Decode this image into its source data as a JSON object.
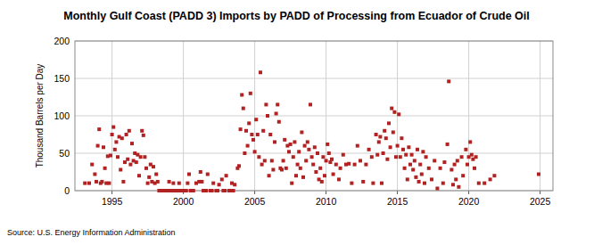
{
  "chart_data": {
    "type": "scatter",
    "title": "Monthly Gulf Coast (PADD 3) Imports by PADD of Processing from Ecuador of Crude Oil",
    "y_label": "Thousand Barrels per Day",
    "source": "Source: U.S. Energy Information Administration",
    "color": "#b22222",
    "marker": "square",
    "grid": true,
    "xlim": [
      1992.4,
      2025.9
    ],
    "xticks": [
      1995,
      2000,
      2005,
      2010,
      2015,
      2020,
      2025
    ],
    "ylim": [
      0,
      200
    ],
    "yticks": [
      0,
      50,
      100,
      150,
      200
    ],
    "x": [
      1993.1,
      1993.4,
      1993.6,
      1993.8,
      1993.9,
      1994.0,
      1994.1,
      1994.2,
      1994.3,
      1994.4,
      1994.5,
      1994.6,
      1994.7,
      1994.8,
      1994.9,
      1995.0,
      1995.1,
      1995.2,
      1995.3,
      1995.4,
      1995.5,
      1995.6,
      1995.7,
      1995.8,
      1995.9,
      1996.0,
      1996.1,
      1996.2,
      1996.3,
      1996.4,
      1996.5,
      1996.6,
      1996.7,
      1996.8,
      1996.9,
      1997.0,
      1997.1,
      1997.2,
      1997.3,
      1997.4,
      1997.5,
      1997.6,
      1997.7,
      1997.8,
      1997.9,
      1998.0,
      1998.1,
      1998.2,
      1998.3,
      1998.5,
      1998.7,
      1998.9,
      1999.0,
      1999.1,
      1999.3,
      1999.5,
      1999.7,
      1999.9,
      2000.0,
      2000.2,
      2000.3,
      2000.4,
      2000.5,
      2000.9,
      1998.4,
      1998.6,
      1998.8,
      1999.2,
      1999.4,
      1999.6,
      1999.8,
      2000.1,
      2000.6,
      2000.7,
      2001.1,
      2001.2,
      2001.3,
      2001.4,
      2001.5,
      2001.6,
      2001.7,
      2001.9,
      2002.0,
      2002.1,
      2002.3,
      2002.4,
      2002.5,
      2002.7,
      2002.8,
      2002.9,
      2003.0,
      2003.2,
      2003.3,
      2003.4,
      2003.5,
      2003.6,
      2003.8,
      2003.9,
      2004.0,
      2004.1,
      2004.2,
      2004.3,
      2004.4,
      2004.5,
      2004.6,
      2004.7,
      2004.8,
      2004.9,
      2005.0,
      2005.1,
      2005.2,
      2005.3,
      2005.4,
      2005.5,
      2005.6,
      2005.7,
      2005.8,
      2005.9,
      2006.0,
      2006.1,
      2006.2,
      2006.3,
      2006.4,
      2006.5,
      2006.6,
      2006.7,
      2006.8,
      2006.9,
      2007.0,
      2007.1,
      2007.2,
      2007.3,
      2007.4,
      2007.5,
      2007.6,
      2007.7,
      2007.8,
      2007.9,
      2008.0,
      2008.1,
      2008.2,
      2008.3,
      2008.4,
      2008.5,
      2008.6,
      2008.7,
      2008.8,
      2008.9,
      2009.0,
      2009.1,
      2009.2,
      2009.3,
      2009.4,
      2009.5,
      2009.6,
      2009.7,
      2009.8,
      2009.9,
      2010.0,
      2010.1,
      2010.2,
      2010.3,
      2010.4,
      2010.5,
      2010.7,
      2010.9,
      2011.0,
      2011.2,
      2011.4,
      2011.6,
      2011.8,
      2012.0,
      2012.2,
      2012.4,
      2012.6,
      2012.8,
      2013.0,
      2013.2,
      2013.3,
      2013.5,
      2013.6,
      2013.7,
      2013.8,
      2013.9,
      2014.0,
      2014.1,
      2014.2,
      2014.3,
      2014.4,
      2014.5,
      2014.6,
      2014.7,
      2014.8,
      2014.9,
      2015.0,
      2015.1,
      2015.2,
      2015.3,
      2015.4,
      2015.5,
      2015.6,
      2015.7,
      2015.8,
      2015.9,
      2016.0,
      2016.1,
      2016.2,
      2016.3,
      2016.4,
      2016.5,
      2016.6,
      2016.7,
      2016.8,
      2016.9,
      2017.0,
      2017.2,
      2017.4,
      2017.6,
      2017.8,
      2018.0,
      2018.2,
      2018.3,
      2018.5,
      2018.6,
      2018.8,
      2018.9,
      2019.0,
      2019.1,
      2019.2,
      2019.3,
      2019.5,
      2019.6,
      2019.8,
      2019.9,
      2020.0,
      2020.1,
      2020.2,
      2020.3,
      2020.4,
      2020.5,
      2020.7,
      2021.1,
      2021.5,
      2021.8,
      2024.9
    ],
    "values": [
      10,
      10,
      35,
      22,
      12,
      60,
      82,
      10,
      12,
      58,
      30,
      10,
      46,
      10,
      47,
      75,
      85,
      55,
      65,
      45,
      72,
      28,
      70,
      12,
      38,
      75,
      42,
      80,
      35,
      63,
      40,
      50,
      38,
      48,
      20,
      45,
      80,
      74,
      45,
      30,
      10,
      18,
      35,
      12,
      32,
      10,
      22,
      12,
      0,
      0,
      0,
      0,
      12,
      0,
      10,
      0,
      10,
      0,
      0,
      0,
      10,
      22,
      0,
      10,
      0,
      0,
      0,
      0,
      0,
      0,
      0,
      0,
      0,
      0,
      12,
      25,
      12,
      0,
      0,
      0,
      22,
      0,
      0,
      10,
      0,
      0,
      8,
      15,
      0,
      0,
      20,
      0,
      0,
      10,
      0,
      8,
      30,
      33,
      82,
      128,
      110,
      50,
      80,
      60,
      90,
      130,
      75,
      68,
      52,
      95,
      75,
      45,
      158,
      35,
      80,
      40,
      115,
      100,
      20,
      75,
      40,
      28,
      65,
      103,
      115,
      92,
      30,
      28,
      40,
      68,
      30,
      60,
      52,
      62,
      10,
      45,
      65,
      20,
      35,
      52,
      30,
      78,
      18,
      60,
      40,
      65,
      55,
      115,
      45,
      35,
      58,
      25,
      50,
      15,
      30,
      12,
      45,
      20,
      40,
      62,
      50,
      38,
      42,
      22,
      35,
      15,
      30,
      48,
      35,
      36,
      10,
      35,
      60,
      40,
      12,
      35,
      55,
      45,
      10,
      75,
      48,
      65,
      72,
      10,
      50,
      80,
      70,
      42,
      90,
      58,
      110,
      78,
      105,
      45,
      60,
      102,
      45,
      70,
      55,
      30,
      48,
      15,
      58,
      35,
      48,
      28,
      40,
      18,
      55,
      12,
      35,
      22,
      52,
      10,
      45,
      30,
      15,
      40,
      3,
      30,
      10,
      38,
      62,
      146,
      28,
      8,
      35,
      15,
      40,
      5,
      45,
      20,
      55,
      35,
      45,
      65,
      48,
      42,
      30,
      45,
      10,
      10,
      15,
      20,
      22
    ]
  }
}
